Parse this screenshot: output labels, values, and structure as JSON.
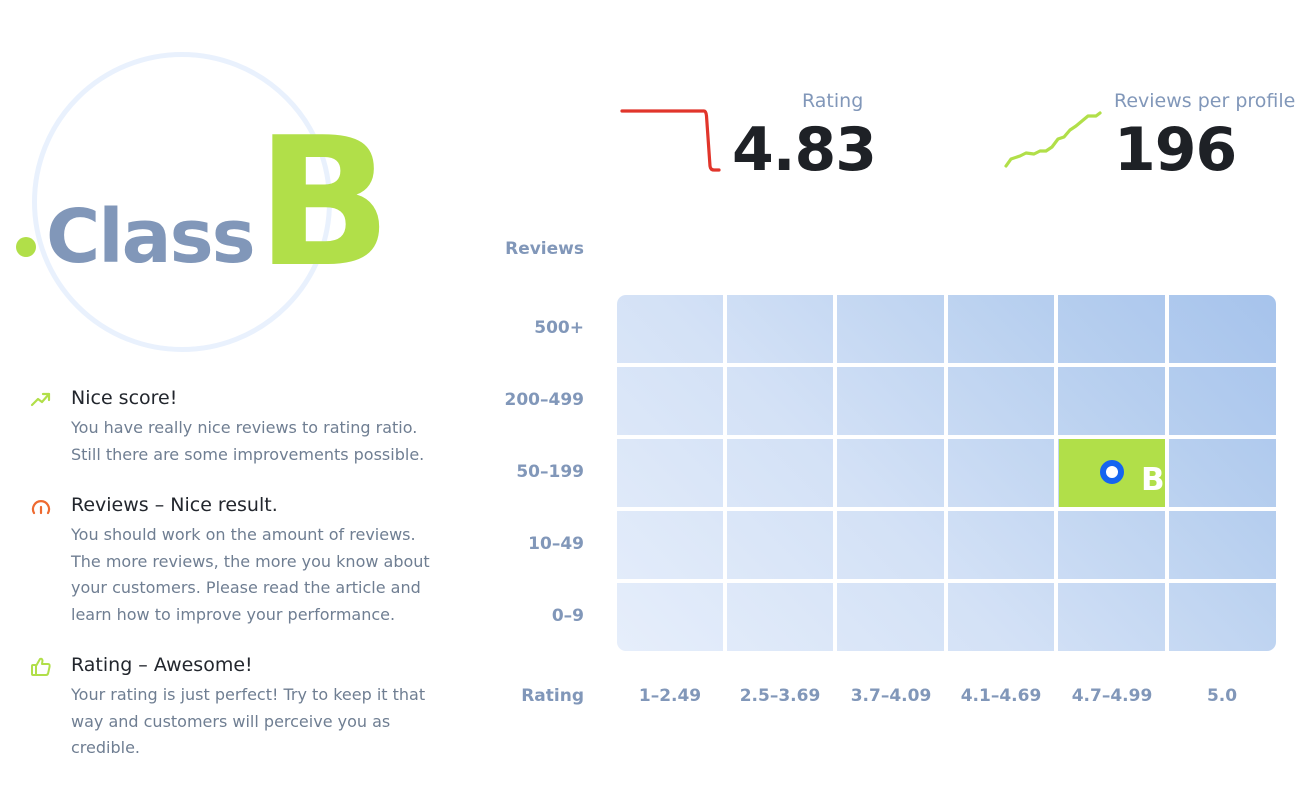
{
  "class_badge": {
    "word": "Class",
    "letter": "B"
  },
  "feedback": [
    {
      "icon": "trend-up-icon",
      "title": "Nice score!",
      "text": "You have really nice reviews to rating ratio. Still there are some improvements possible."
    },
    {
      "icon": "gauge-icon",
      "title": "Reviews – Nice result.",
      "text": "You should work on the amount of reviews. The more reviews, the more you know about your customers. Please read the article and learn how to improve your performance."
    },
    {
      "icon": "thumbs-up-icon",
      "title": "Rating – Awesome!",
      "text": "Your rating is just perfect! Try to keep it that way and customers will perceive you as credible."
    }
  ],
  "stats": {
    "rating": {
      "label": "Rating",
      "value": "4.83"
    },
    "reviews_per_profile": {
      "label": "Reviews per profile",
      "value": "196"
    }
  },
  "matrix": {
    "y_axis_title": "Reviews",
    "x_axis_title": "Rating",
    "rows": [
      "500+",
      "200–499",
      "50–199",
      "10–49",
      "0–9"
    ],
    "columns": [
      "1–2.49",
      "2.5–3.69",
      "3.7–4.09",
      "4.1–4.69",
      "4.7–4.99",
      "5.0"
    ],
    "highlight": {
      "row": "50–199",
      "column": "4.7–4.99",
      "letter": "B"
    }
  },
  "colors": {
    "accent_green": "#b1df49",
    "label_blue": "#8197b9",
    "marker_blue": "#1565f0",
    "trend_red": "#e1352b",
    "gauge_orange": "#ee6a30"
  }
}
